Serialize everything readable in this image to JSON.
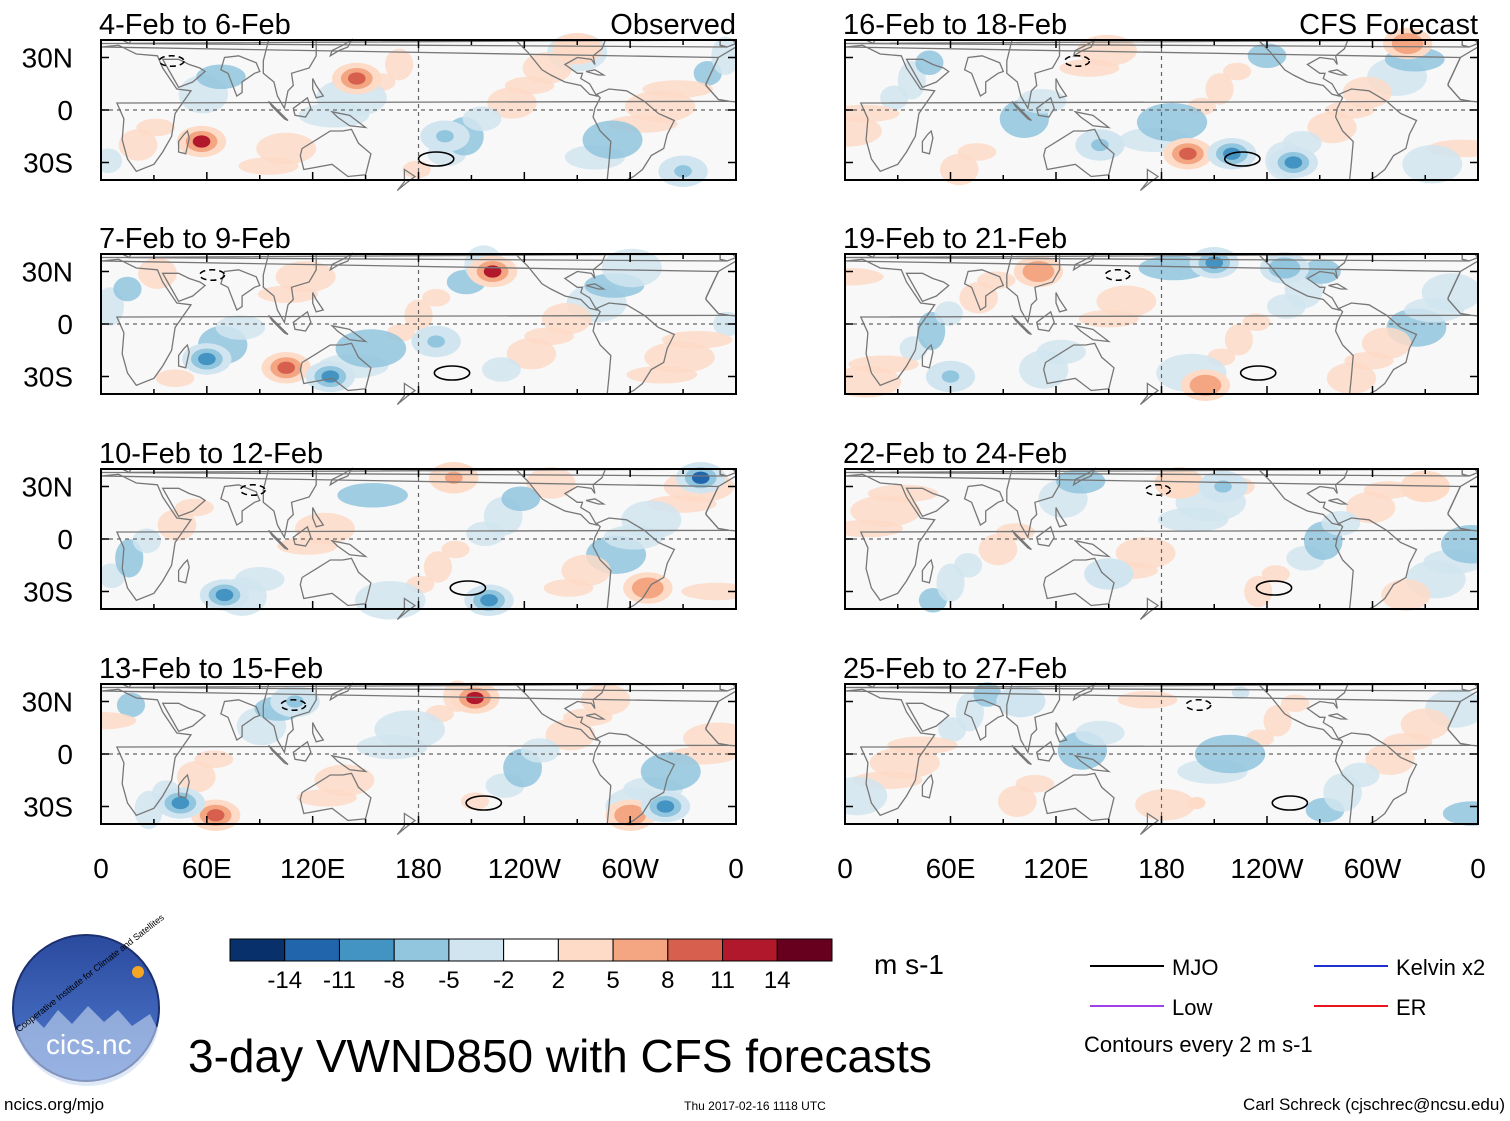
{
  "chart_data": {
    "type": "heatmap",
    "title": "3-day VWND850 with CFS forecasts",
    "variable": "VWND850",
    "units": "m s-1",
    "column_labels": [
      "Observed",
      "CFS Forecast"
    ],
    "x_ticks": [
      "0",
      "60E",
      "120E",
      "180",
      "120W",
      "60W",
      "0"
    ],
    "y_ticks": [
      "30N",
      "0",
      "30S"
    ],
    "xlim": [
      0,
      360
    ],
    "ylim": [
      -40,
      40
    ],
    "panels": [
      {
        "period": "4-Feb to 6-Feb",
        "kind": "Observed",
        "features": [
          {
            "lon": 145,
            "lat": 18,
            "v": 11
          },
          {
            "lon": 57,
            "lat": -18,
            "v": 14
          },
          {
            "lon": 195,
            "lat": -15,
            "v": -5
          },
          {
            "lon": 330,
            "lat": -35,
            "v": -6
          },
          {
            "lon": 270,
            "lat": 35,
            "v": 5
          }
        ]
      },
      {
        "period": "7-Feb to 9-Feb",
        "kind": "Observed",
        "features": [
          {
            "lon": 222,
            "lat": 30,
            "v": 14
          },
          {
            "lon": 105,
            "lat": -25,
            "v": 11
          },
          {
            "lon": 130,
            "lat": -30,
            "v": -10
          },
          {
            "lon": 190,
            "lat": -10,
            "v": -6
          },
          {
            "lon": 60,
            "lat": -20,
            "v": -8
          }
        ]
      },
      {
        "period": "10-Feb to 12-Feb",
        "kind": "Observed",
        "features": [
          {
            "lon": 340,
            "lat": 35,
            "v": -12
          },
          {
            "lon": 220,
            "lat": -35,
            "v": -9
          },
          {
            "lon": 200,
            "lat": 35,
            "v": 6
          },
          {
            "lon": 70,
            "lat": -32,
            "v": -10
          },
          {
            "lon": 310,
            "lat": -28,
            "v": 8
          }
        ]
      },
      {
        "period": "13-Feb to 15-Feb",
        "kind": "Observed",
        "features": [
          {
            "lon": 212,
            "lat": 32,
            "v": 14
          },
          {
            "lon": 300,
            "lat": -35,
            "v": 8
          },
          {
            "lon": 320,
            "lat": -30,
            "v": -9
          },
          {
            "lon": 65,
            "lat": -35,
            "v": 11
          },
          {
            "lon": 45,
            "lat": -28,
            "v": -8
          },
          {
            "lon": 110,
            "lat": 30,
            "v": -5
          }
        ]
      },
      {
        "period": "16-Feb to 18-Feb",
        "kind": "CFS Forecast",
        "features": [
          {
            "lon": 320,
            "lat": 38,
            "v": 8
          },
          {
            "lon": 195,
            "lat": -25,
            "v": 9
          },
          {
            "lon": 220,
            "lat": -25,
            "v": -9
          },
          {
            "lon": 255,
            "lat": -30,
            "v": -8
          },
          {
            "lon": 145,
            "lat": -20,
            "v": -6
          }
        ]
      },
      {
        "period": "19-Feb to 21-Feb",
        "kind": "CFS Forecast",
        "features": [
          {
            "lon": 205,
            "lat": -35,
            "v": 8
          },
          {
            "lon": 210,
            "lat": 35,
            "v": -9
          },
          {
            "lon": 250,
            "lat": 32,
            "v": -7
          },
          {
            "lon": 110,
            "lat": 30,
            "v": 7
          },
          {
            "lon": 60,
            "lat": -30,
            "v": -6
          }
        ]
      },
      {
        "period": "22-Feb to 24-Feb",
        "kind": "CFS Forecast",
        "features": [
          {
            "lon": 190,
            "lat": 32,
            "v": 5
          },
          {
            "lon": 215,
            "lat": 30,
            "v": -5
          },
          {
            "lon": 330,
            "lat": 30,
            "v": 5
          },
          {
            "lon": 150,
            "lat": -20,
            "v": -4
          }
        ]
      },
      {
        "period": "25-Feb to 27-Feb",
        "kind": "CFS Forecast",
        "features": [
          {
            "lon": 100,
            "lat": 30,
            "v": -4
          },
          {
            "lon": 225,
            "lat": 35,
            "v": -3
          },
          {
            "lon": 200,
            "lat": -28,
            "v": 3
          }
        ]
      }
    ],
    "colorbar": {
      "ticks": [
        "-14",
        "-11",
        "-8",
        "-5",
        "-2",
        "2",
        "5",
        "8",
        "11",
        "14"
      ],
      "colors": [
        "#08306b",
        "#2166ac",
        "#4393c3",
        "#92c5de",
        "#d1e5f0",
        "#ffffff",
        "#fddbc7",
        "#f4a582",
        "#d6604d",
        "#b2182b",
        "#67001f"
      ]
    },
    "legend": [
      {
        "label": "MJO",
        "color": "#000000"
      },
      {
        "label": "Kelvin x2",
        "color": "#1f2fd0"
      },
      {
        "label": "Low",
        "color": "#a040e8"
      },
      {
        "label": "ER",
        "color": "#e8141e"
      }
    ],
    "contour_note": "Contours every 2 m s-1"
  },
  "footer": {
    "left": "ncics.org/mjo",
    "center": "Thu 2017-02-16 1118 UTC",
    "right": "Carl Schreck (cjschrec@ncsu.edu)"
  },
  "logo": {
    "text": "cics.nc",
    "arc_text": "Cooperative Institute for Climate and Satellites"
  },
  "colors": {
    "equator_line": "#666666",
    "land": "#777777",
    "background": "#f8f8f8"
  }
}
